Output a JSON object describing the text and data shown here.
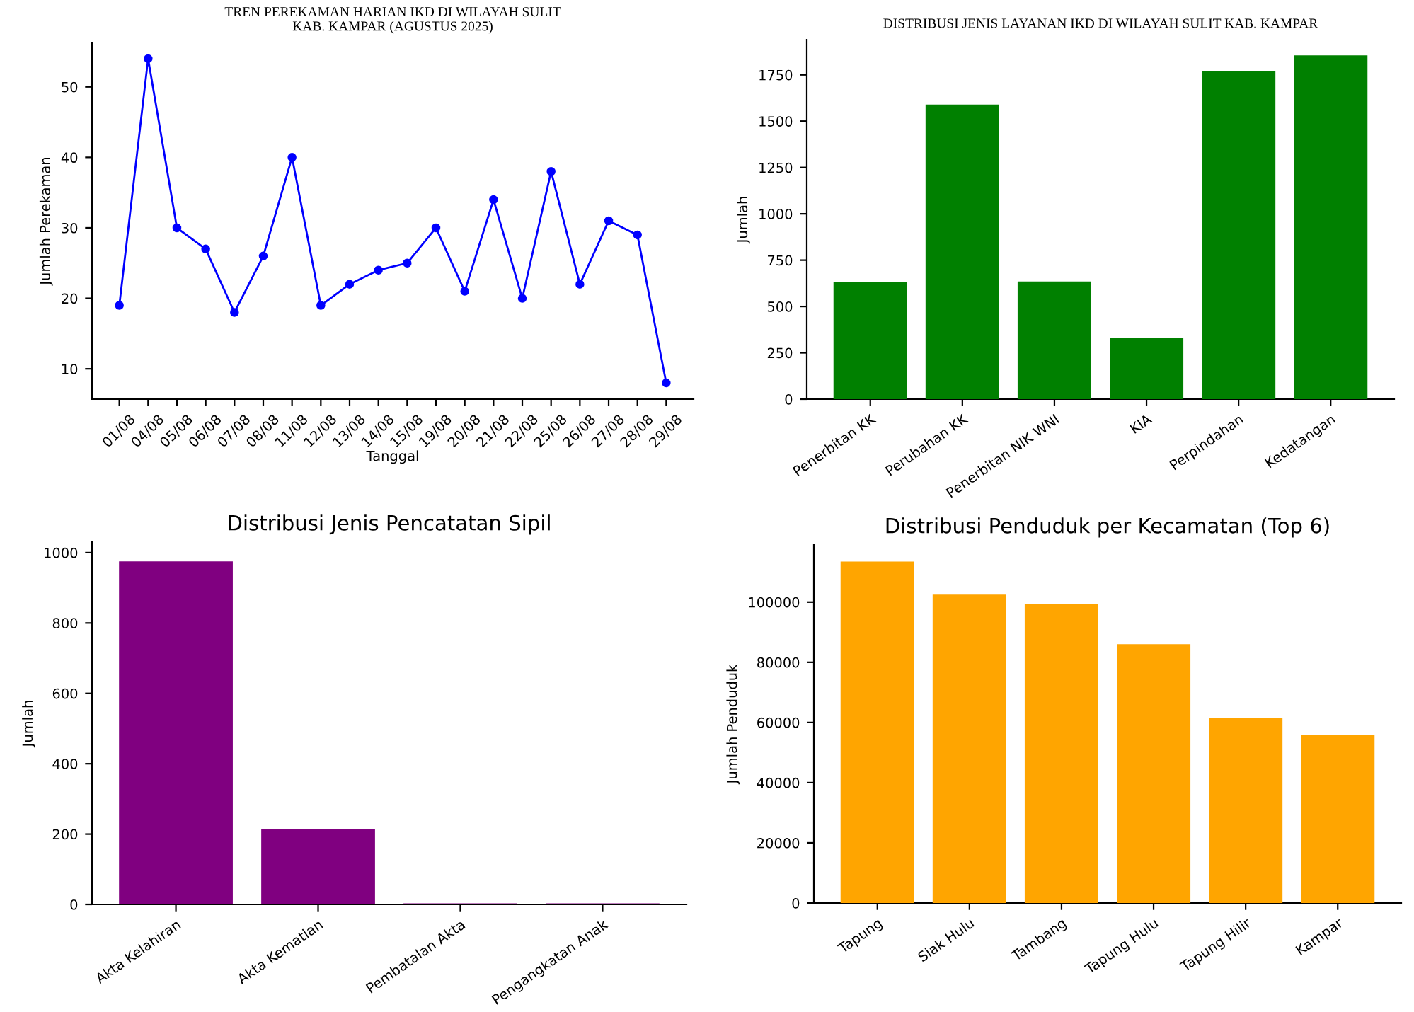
{
  "chart_data": [
    {
      "type": "line",
      "title": "TREN PEREKAMAN HARIAN IKD DI WILAYAH SULIT\nKAB. KAMPAR (AGUSTUS 2025)",
      "xlabel": "Tanggal",
      "ylabel": "Jumlah Perekaman",
      "categories": [
        "01/08",
        "04/08",
        "05/08",
        "06/08",
        "07/08",
        "08/08",
        "11/08",
        "12/08",
        "13/08",
        "14/08",
        "15/08",
        "19/08",
        "20/08",
        "21/08",
        "22/08",
        "25/08",
        "26/08",
        "27/08",
        "28/08",
        "29/08"
      ],
      "series": [
        {
          "color": "#0000ff",
          "values": [
            19,
            54,
            30,
            27,
            18,
            26,
            40,
            19,
            22,
            24,
            25,
            30,
            21,
            34,
            20,
            38,
            22,
            31,
            29,
            8
          ]
        }
      ],
      "ylim": [
        5.7,
        56.3
      ],
      "yticks": [
        10,
        20,
        30,
        40,
        50
      ],
      "marker": "circle",
      "line_style": "solid",
      "grid": false,
      "legend": false
    },
    {
      "type": "bar",
      "title": "DISTRIBUSI JENIS LAYANAN IKD DI WILAYAH SULIT KAB. KAMPAR",
      "ylabel": "Jumlah",
      "categories": [
        "Penerbitan KK",
        "Perubahan KK",
        "Penerbitan NIK WNI",
        "KIA",
        "Perpindahan",
        "Kedatangan"
      ],
      "series": [
        {
          "color": "#008000",
          "values": [
            630,
            1590,
            635,
            330,
            1770,
            1855
          ]
        }
      ],
      "ylim": [
        0,
        1940
      ],
      "yticks": [
        0,
        250,
        500,
        750,
        1000,
        1250,
        1500,
        1750
      ],
      "grid": false,
      "legend": false
    },
    {
      "type": "bar",
      "title": "Distribusi Jenis Pencatatan Sipil",
      "ylabel": "Jumlah",
      "categories": [
        "Akta Kelahiran",
        "Akta Kematian",
        "Pembatalan Akta",
        "Pengangkatan Anak"
      ],
      "series": [
        {
          "color": "#800080",
          "values": [
            975,
            215,
            3,
            3
          ]
        }
      ],
      "ylim": [
        0,
        1030
      ],
      "yticks": [
        0,
        200,
        400,
        600,
        800,
        1000
      ],
      "grid": false,
      "legend": false
    },
    {
      "type": "bar",
      "title": "Distribusi Penduduk per Kecamatan (Top 6)",
      "ylabel": "Jumlah Penduduk",
      "categories": [
        "Tapung",
        "Siak Hulu",
        "Tambang",
        "Tapung Hulu",
        "Tapung Hilir",
        "Kampar"
      ],
      "series": [
        {
          "color": "#ffa500",
          "values": [
            113500,
            102500,
            99500,
            86000,
            61500,
            56000
          ]
        }
      ],
      "ylim": [
        0,
        119000
      ],
      "yticks": [
        0,
        20000,
        40000,
        60000,
        80000,
        100000
      ],
      "grid": false,
      "legend": false
    }
  ]
}
